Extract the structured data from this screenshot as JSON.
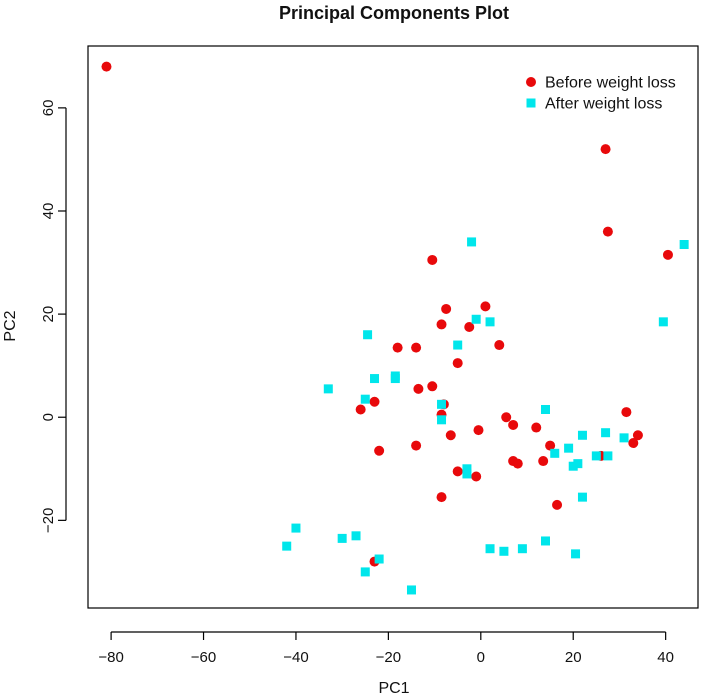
{
  "chart_data": {
    "type": "scatter",
    "title": "Principal Components Plot",
    "xlabel": "PC1",
    "ylabel": "PC2",
    "xlim": [
      -85,
      47
    ],
    "ylim": [
      -37,
      72
    ],
    "xticks": [
      -80,
      -60,
      -40,
      -20,
      0,
      20,
      40
    ],
    "yticks": [
      -20,
      0,
      20,
      40,
      60
    ],
    "grid": false,
    "legend_position": "top-right",
    "series": [
      {
        "name": "Before weight loss",
        "marker": "circle",
        "color": "#e8090b",
        "points": [
          [
            -81,
            68
          ],
          [
            27,
            52
          ],
          [
            27.5,
            36
          ],
          [
            40.5,
            31.5
          ],
          [
            -10.5,
            30.5
          ],
          [
            1,
            21.5
          ],
          [
            -7.5,
            21
          ],
          [
            -2.5,
            17.5
          ],
          [
            -8.5,
            18
          ],
          [
            -18,
            13.5
          ],
          [
            -14,
            13.5
          ],
          [
            4,
            14
          ],
          [
            -5,
            10.5
          ],
          [
            -10.5,
            6
          ],
          [
            -13.5,
            5.5
          ],
          [
            -8,
            2.5
          ],
          [
            -23,
            3
          ],
          [
            -26,
            1.5
          ],
          [
            -8.5,
            0.5
          ],
          [
            5.5,
            0
          ],
          [
            31.5,
            1
          ],
          [
            7,
            -1.5
          ],
          [
            12,
            -2
          ],
          [
            -0.5,
            -2.5
          ],
          [
            -6.5,
            -3.5
          ],
          [
            34,
            -3.5
          ],
          [
            33,
            -5
          ],
          [
            -14,
            -5.5
          ],
          [
            15,
            -5.5
          ],
          [
            -22,
            -6.5
          ],
          [
            26,
            -7.5
          ],
          [
            7,
            -8.5
          ],
          [
            8,
            -9
          ],
          [
            13.5,
            -8.5
          ],
          [
            -5,
            -10.5
          ],
          [
            -1,
            -11.5
          ],
          [
            -8.5,
            -15.5
          ],
          [
            16.5,
            -17
          ],
          [
            -23,
            -28
          ]
        ]
      },
      {
        "name": "After weight loss",
        "marker": "square",
        "color": "#00e6eb",
        "points": [
          [
            -2,
            34
          ],
          [
            44,
            33.5
          ],
          [
            39.5,
            18.5
          ],
          [
            -1,
            19
          ],
          [
            2,
            18.5
          ],
          [
            -24.5,
            16
          ],
          [
            -5,
            14
          ],
          [
            -18.5,
            8
          ],
          [
            -18.5,
            7.5
          ],
          [
            -23,
            7.5
          ],
          [
            -33,
            5.5
          ],
          [
            -25,
            3.5
          ],
          [
            -8.5,
            2.5
          ],
          [
            14,
            1.5
          ],
          [
            -8.5,
            -0.5
          ],
          [
            27,
            -3
          ],
          [
            31,
            -4
          ],
          [
            22,
            -3.5
          ],
          [
            19,
            -6
          ],
          [
            16,
            -7
          ],
          [
            25,
            -7.5
          ],
          [
            27.5,
            -7.5
          ],
          [
            21,
            -9
          ],
          [
            20,
            -9.5
          ],
          [
            -3,
            -10
          ],
          [
            -3,
            -11
          ],
          [
            22,
            -15.5
          ],
          [
            -40,
            -21.5
          ],
          [
            -42,
            -25
          ],
          [
            -30,
            -23.5
          ],
          [
            -27,
            -23
          ],
          [
            14,
            -24
          ],
          [
            9,
            -25.5
          ],
          [
            2,
            -25.5
          ],
          [
            5,
            -26
          ],
          [
            20.5,
            -26.5
          ],
          [
            -22,
            -27.5
          ],
          [
            -25,
            -30
          ],
          [
            -15,
            -33.5
          ]
        ]
      }
    ]
  }
}
